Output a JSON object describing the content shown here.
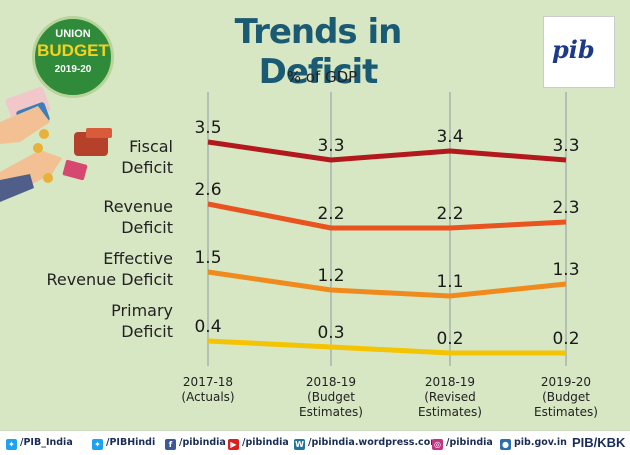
{
  "header": {
    "title": "Trends in Deficit",
    "subtitle": "% of GDP",
    "budget_logo": {
      "line1": "UNION",
      "line2": "BUDGET",
      "line3": "2019-20"
    },
    "pib_logo": "pib"
  },
  "chart_data": {
    "type": "line",
    "subtitle": "% of GDP",
    "categories": [
      [
        "2017-18",
        "(Actuals)"
      ],
      [
        "2018-19",
        "(Budget",
        "Estimates)"
      ],
      [
        "2018-19",
        "(Revised",
        "Estimates)"
      ],
      [
        "2019-20",
        "(Budget",
        "Estimates)"
      ]
    ],
    "series": [
      {
        "name": "Fiscal Deficit",
        "label_lines": [
          "Fiscal",
          "Deficit"
        ],
        "values": [
          3.5,
          3.3,
          3.4,
          3.3
        ],
        "color": "#b3191c"
      },
      {
        "name": "Revenue Deficit",
        "label_lines": [
          "Revenue",
          "Deficit"
        ],
        "values": [
          2.6,
          2.2,
          2.2,
          2.3
        ],
        "color": "#e9531f"
      },
      {
        "name": "Effective Revenue Deficit",
        "label_lines": [
          "Effective",
          "Revenue Deficit"
        ],
        "values": [
          1.5,
          1.2,
          1.1,
          1.3
        ],
        "color": "#f08a1c"
      },
      {
        "name": "Primary Deficit",
        "label_lines": [
          "Primary",
          "Deficit"
        ],
        "values": [
          0.4,
          0.3,
          0.2,
          0.2
        ],
        "color": "#f5c400"
      }
    ],
    "grid": "vertical",
    "legend": "left, inline labels"
  },
  "footer": {
    "items": [
      {
        "icon": "twitter-icon",
        "text": "/PIB_India"
      },
      {
        "icon": "twitter-icon",
        "text": "/PIBHindi"
      },
      {
        "icon": "facebook-icon",
        "text": "/pibindia"
      },
      {
        "icon": "youtube-icon",
        "text": "/pibindia"
      },
      {
        "icon": "wordpress-icon",
        "text": "/pibindia.wordpress.com"
      },
      {
        "icon": "instagram-icon",
        "text": "/pibindia"
      },
      {
        "icon": "globe-icon",
        "text": "pib.gov.in"
      }
    ],
    "credit": "PIB/KBK"
  }
}
